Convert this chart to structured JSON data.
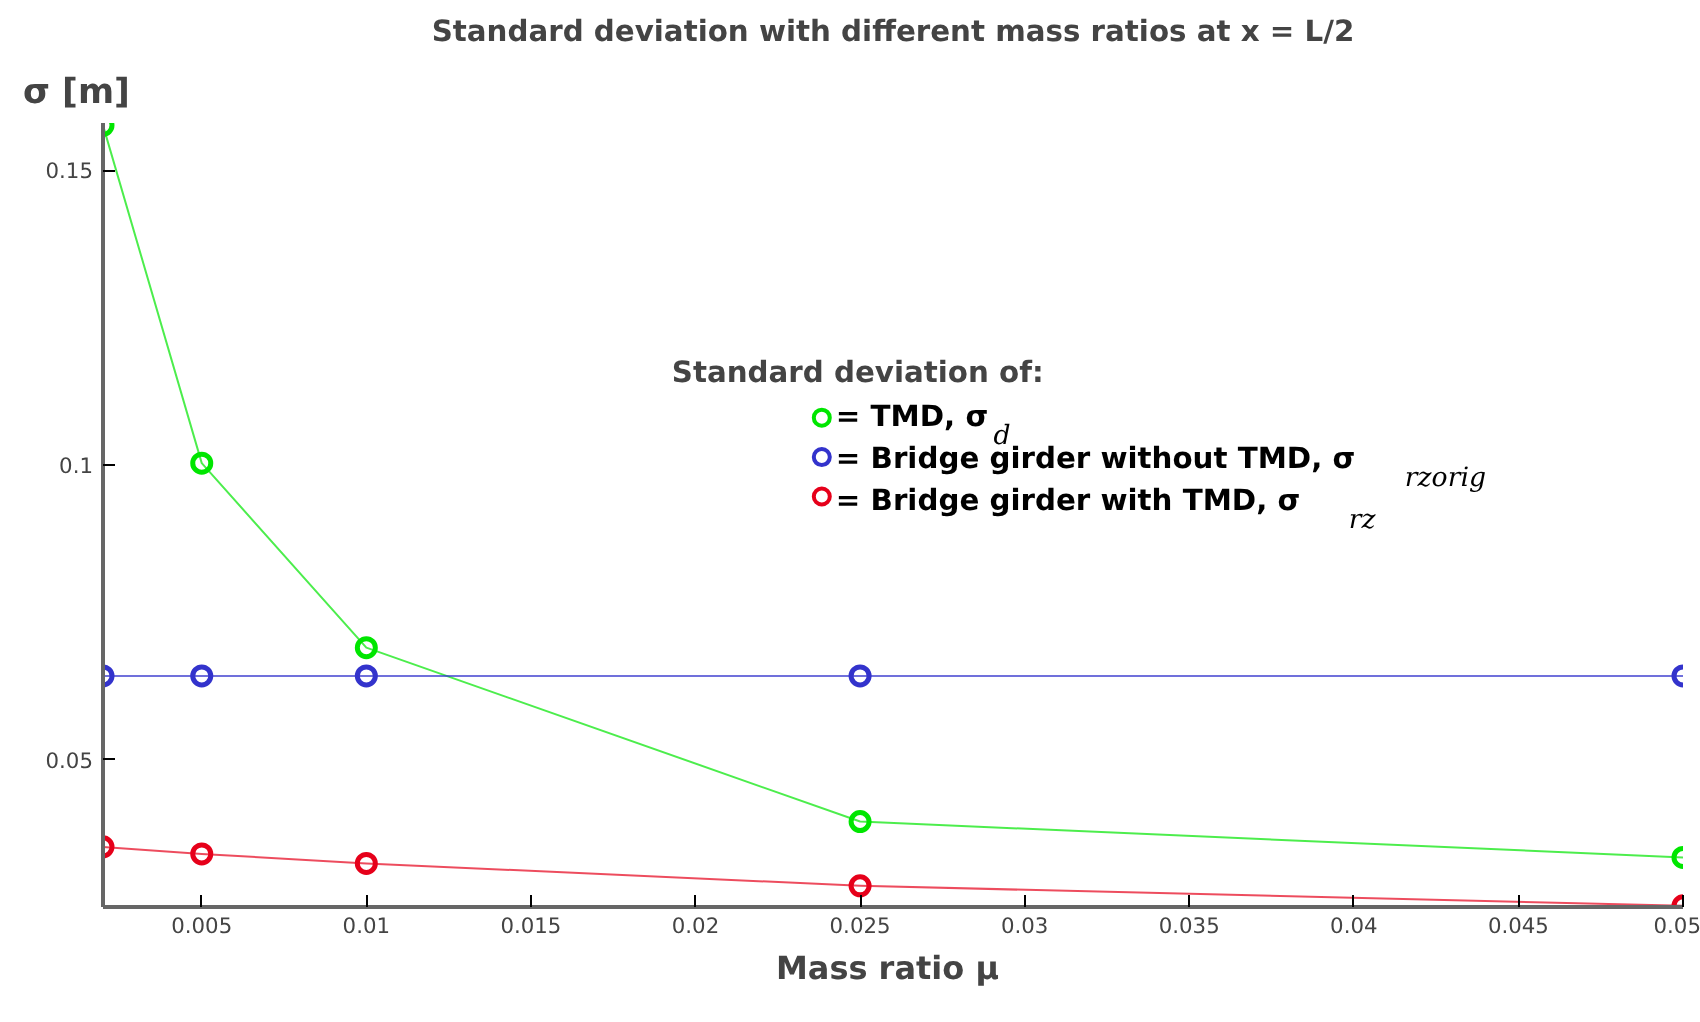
{
  "chart_data": {
    "type": "line",
    "title": "Standard deviation with different mass ratios at x = L/2",
    "xlabel": "Mass ratio  μ",
    "ylabel": "σ [m]",
    "legend_title": "Standard deviation of:",
    "x": [
      0.002,
      0.005,
      0.01,
      0.025,
      0.05
    ],
    "series": [
      {
        "name": "= TMD, σ$_{d}$",
        "color": "#00e600",
        "values": [
          0.1576,
          0.1003,
          0.069,
          0.0395,
          0.0334
        ]
      },
      {
        "name": "= Bridge girder without TMD, σ$_{rzorig}$",
        "color": "#3333cc",
        "values": [
          0.0642,
          0.0642,
          0.0642,
          0.0642,
          0.0642
        ]
      },
      {
        "name": "= Bridge girder with TMD, σ$_{rz}$",
        "color": "#e6001a",
        "values": [
          0.0352,
          0.034,
          0.0324,
          0.0286,
          0.0252
        ]
      }
    ],
    "xlim": [
      0.002,
      0.05
    ],
    "ylim": [
      0.025,
      0.158
    ],
    "xticks": [
      0.005,
      0.01,
      0.015,
      0.02,
      0.025,
      0.03,
      0.035,
      0.04,
      0.045,
      0.05
    ],
    "yticks": [
      0.05,
      0.1,
      0.15
    ],
    "grid": false,
    "legend": "right",
    "marker": "circle",
    "line_style": "solid"
  }
}
